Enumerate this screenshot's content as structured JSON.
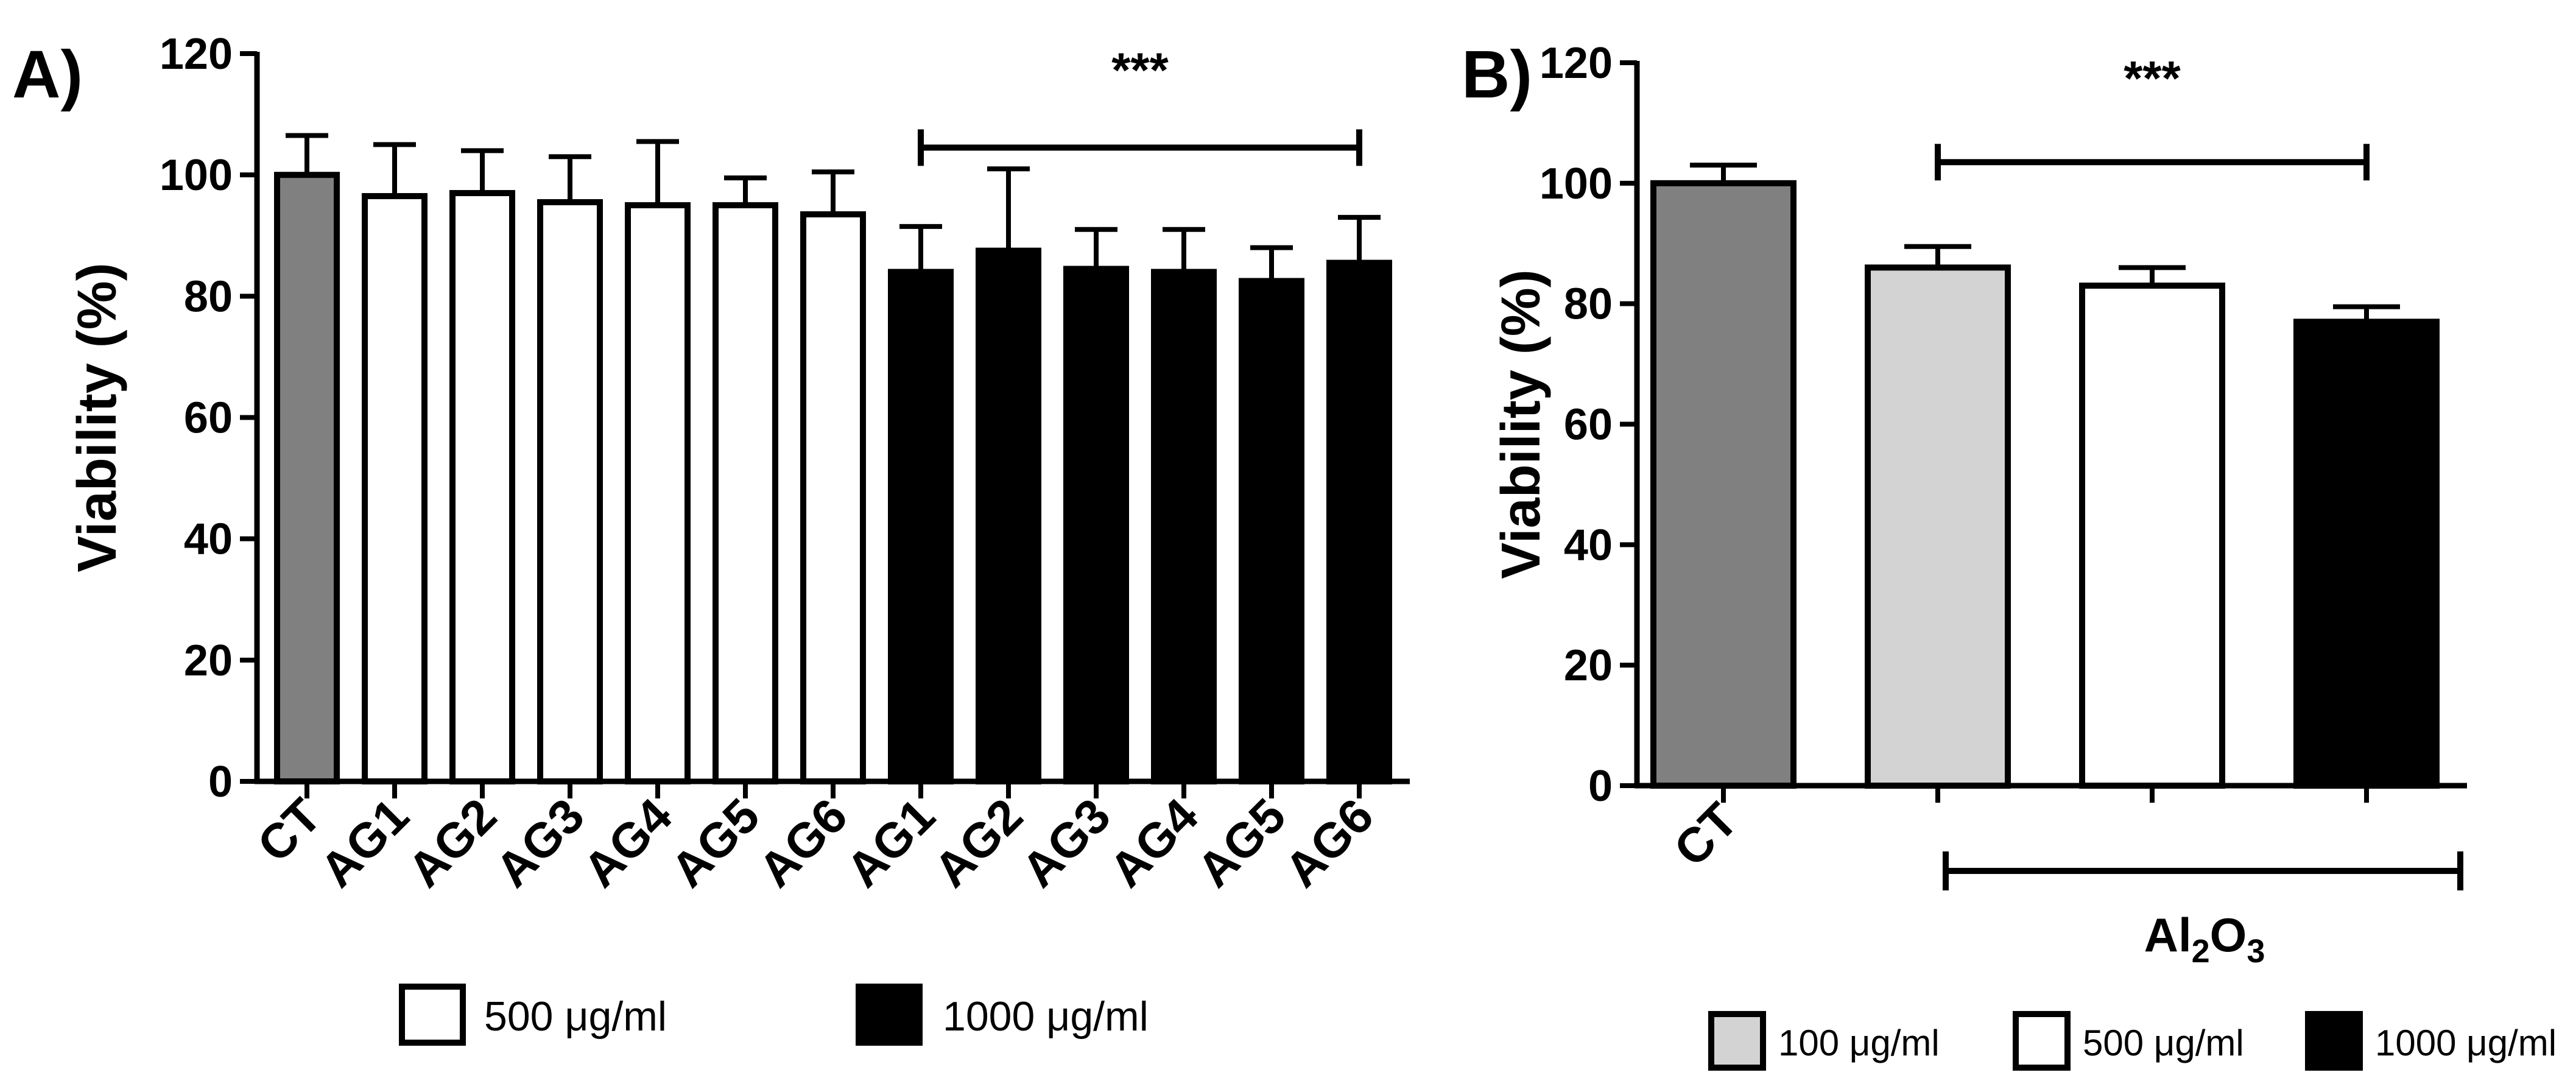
{
  "chart_data": [
    {
      "type": "bar",
      "panel_label": "A)",
      "ylabel": "Viability (%)",
      "ylim": [
        0,
        120
      ],
      "yticks": [
        0,
        20,
        40,
        60,
        80,
        100,
        120
      ],
      "categories": [
        "CT",
        "AG1",
        "AG2",
        "AG3",
        "AG4",
        "AG5",
        "AG6",
        "AG1",
        "AG2",
        "AG3",
        "AG4",
        "AG5",
        "AG6"
      ],
      "groups": [
        "control",
        "500",
        "500",
        "500",
        "500",
        "500",
        "500",
        "1000",
        "1000",
        "1000",
        "1000",
        "1000",
        "1000"
      ],
      "values": [
        100,
        96.5,
        97,
        95.5,
        95,
        95,
        93.5,
        84,
        87.5,
        84.5,
        84,
        82.5,
        85.5
      ],
      "errors": [
        6.5,
        8.5,
        7,
        7.5,
        10.5,
        4.5,
        7,
        7.5,
        13.5,
        6.5,
        7,
        5.5,
        7.5
      ],
      "significance": {
        "label": "***",
        "from": 7,
        "to": 12
      },
      "legend": [
        {
          "label": "500 μg/ml",
          "color": "#ffffff"
        },
        {
          "label": "1000 μg/ml",
          "color": "#000000"
        }
      ],
      "colors": {
        "control": "#808080",
        "500": "#ffffff",
        "1000": "#000000"
      }
    },
    {
      "type": "bar",
      "panel_label": "B)",
      "ylabel": "Viability (%)",
      "ylim": [
        0,
        120
      ],
      "yticks": [
        0,
        20,
        40,
        60,
        80,
        100,
        120
      ],
      "categories": [
        "CT",
        "",
        "",
        ""
      ],
      "groups": [
        "control",
        "100",
        "500",
        "1000"
      ],
      "values": [
        100,
        86,
        83,
        77
      ],
      "errors": [
        3,
        3.5,
        3,
        2.5
      ],
      "significance": {
        "label": "***",
        "from": 1,
        "to": 3
      },
      "group_label": "Al2O3",
      "group_label_main": "Al",
      "group_label_sub1": "2",
      "group_label_mid": "O",
      "group_label_sub2": "3",
      "legend": [
        {
          "label": "100 μg/ml",
          "color": "#d3d3d3"
        },
        {
          "label": "500 μg/ml",
          "color": "#ffffff"
        },
        {
          "label": "1000 μg/ml",
          "color": "#000000"
        }
      ],
      "colors": {
        "control": "#808080",
        "100": "#d3d3d3",
        "500": "#ffffff",
        "1000": "#000000"
      }
    }
  ]
}
